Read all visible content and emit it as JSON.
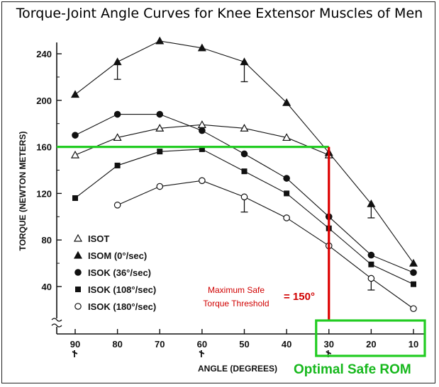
{
  "colors": {
    "green": "#22cc22",
    "red": "#dd0000",
    "ink": "#111111"
  },
  "chart_data": {
    "type": "line",
    "title": "Torque-Joint Angle Curves for Knee Extensor Muscles of Men",
    "xlabel": "ANGLE (DEGREES)",
    "ylabel": "TORQUE (NEWTON METERS)",
    "x_ticks": [
      "90",
      "80",
      "70",
      "60",
      "50",
      "40",
      "30",
      "20",
      "10"
    ],
    "y_ticks": [
      "40",
      "80",
      "120",
      "160",
      "200",
      "240"
    ],
    "xlim": [
      90,
      10
    ],
    "ylim": [
      20,
      250
    ],
    "legend_position": "bottom-left",
    "series": [
      {
        "name": "ISOT",
        "marker": "triangle-open",
        "x": [
          90,
          80,
          70,
          60,
          50,
          40,
          30
        ],
        "y": [
          153,
          168,
          176,
          179,
          176,
          168,
          153
        ]
      },
      {
        "name": "ISOM (0°/sec)",
        "marker": "triangle-filled",
        "x": [
          90,
          80,
          70,
          60,
          50,
          40,
          30,
          20,
          10
        ],
        "y": [
          205,
          233,
          251,
          245,
          233,
          198,
          155,
          111,
          60
        ]
      },
      {
        "name": "ISOK (36°/sec)",
        "marker": "circle-filled",
        "x": [
          90,
          80,
          70,
          60,
          50,
          40,
          30,
          20,
          10
        ],
        "y": [
          170,
          188,
          188,
          174,
          154,
          133,
          100,
          67,
          52
        ]
      },
      {
        "name": "ISOK (108°/sec)",
        "marker": "square-filled",
        "x": [
          90,
          80,
          70,
          60,
          50,
          40,
          30,
          20,
          10
        ],
        "y": [
          116,
          144,
          156,
          158,
          139,
          120,
          90,
          59,
          42
        ]
      },
      {
        "name": "ISOK (180°/sec)",
        "marker": "circle-open",
        "x": [
          80,
          70,
          60,
          50,
          40,
          30,
          20,
          10
        ],
        "y": [
          110,
          126,
          131,
          117,
          99,
          75,
          47,
          21
        ]
      }
    ],
    "error_bars": [
      {
        "x": 80,
        "low": 218,
        "high": 233
      },
      {
        "x": 50,
        "low": 216,
        "high": 233
      },
      {
        "x": 50,
        "low": 104,
        "high": 117
      },
      {
        "x": 20,
        "low": 99,
        "high": 111
      },
      {
        "x": 20,
        "low": 37,
        "high": 47
      }
    ],
    "annotations": {
      "threshold_value": 160,
      "threshold_angle": 30,
      "threshold_label_line1": "Maximum Safe",
      "threshold_label_line2": "Torque Threshold",
      "threshold_value_label": "= 150°",
      "safe_rom_label": "Optimal Safe ROM",
      "safe_rom_range": [
        30,
        10
      ]
    }
  }
}
